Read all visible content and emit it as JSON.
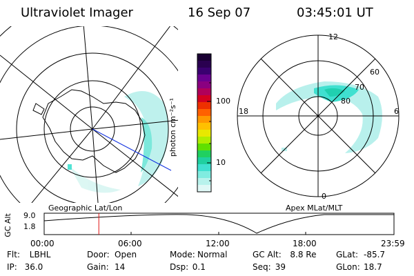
{
  "header": {
    "instrument": "Ultraviolet Imager",
    "date": "16 Sep 07",
    "time": "03:45:01 UT"
  },
  "left_panel": {
    "caption": "Geographic Lat/Lon"
  },
  "right_panel": {
    "caption": "Apex MLat/MLT",
    "mlt_labels": {
      "top": "12",
      "bottom": "0",
      "left": "18",
      "right": "6"
    },
    "lat_labels": [
      "60",
      "70",
      "80"
    ]
  },
  "colorbar": {
    "unit_label": "photon cm⁻²s⁻¹",
    "tick_labels": [
      "100",
      "10"
    ],
    "colors": [
      "#1a0033",
      "#2a0050",
      "#3a0070",
      "#6a0090",
      "#8a0080",
      "#b0005a",
      "#d40020",
      "#ee3000",
      "#ff6000",
      "#ff9800",
      "#ffc000",
      "#e8e800",
      "#b0ee00",
      "#60e000",
      "#20d060",
      "#20d0a0",
      "#40e0d0",
      "#80ece0",
      "#b8f2ec",
      "#e0f8f6"
    ]
  },
  "timeline": {
    "y_axis_label": "GC Alt",
    "y_ticks": [
      "9.0",
      "1.8"
    ],
    "x_ticks": [
      "00:00",
      "06:00",
      "12:00",
      "18:00",
      "23:59"
    ],
    "marker_hours": 3.75
  },
  "status": {
    "row1": [
      {
        "k": "Flt:",
        "v": "LBHL"
      },
      {
        "k": "Door:",
        "v": "Open"
      },
      {
        "k": "Mode:",
        "v": "Normal"
      },
      {
        "k": "GC Alt:",
        "v": "8.8 Re"
      },
      {
        "k": "GLat:",
        "v": "-85.7"
      }
    ],
    "row2": [
      {
        "k": "IP:",
        "v": "36.0"
      },
      {
        "k": "Gain:",
        "v": "14"
      },
      {
        "k": "Dsp:",
        "v": "0.1"
      },
      {
        "k": "Seq:",
        "v": "39"
      },
      {
        "k": "GLon:",
        "v": "18.7"
      }
    ]
  }
}
